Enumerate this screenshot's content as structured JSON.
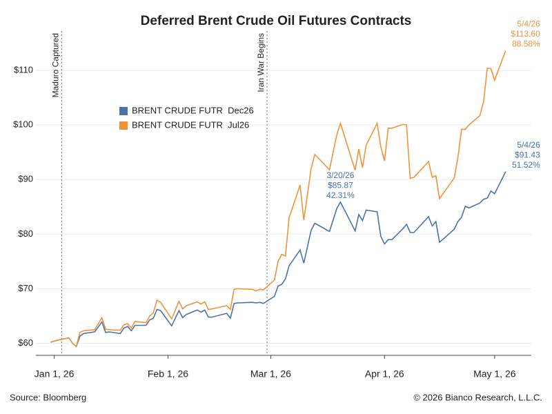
{
  "chart_data": {
    "type": "line",
    "title": "Deferred Brent Crude Oil Futures Contracts",
    "source": "Source: Bloomberg",
    "copyright": "© 2026 Bianco Research, L.L.C.",
    "x": [
      "2025-12-31",
      "2026-01-02",
      "2026-01-05",
      "2026-01-06",
      "2026-01-07",
      "2026-01-08",
      "2026-01-09",
      "2026-01-12",
      "2026-01-14",
      "2026-01-15",
      "2026-01-16",
      "2026-01-19",
      "2026-01-20",
      "2026-01-21",
      "2026-01-22",
      "2026-01-23",
      "2026-01-26",
      "2026-01-27",
      "2026-01-28",
      "2026-01-29",
      "2026-01-30",
      "2026-02-02",
      "2026-02-04",
      "2026-02-05",
      "2026-02-06",
      "2026-02-09",
      "2026-02-10",
      "2026-02-11",
      "2026-02-12",
      "2026-02-13",
      "2026-02-17",
      "2026-02-18",
      "2026-02-19",
      "2026-02-20",
      "2026-02-24",
      "2026-02-25",
      "2026-02-26",
      "2026-02-27",
      "2026-03-02",
      "2026-03-03",
      "2026-03-04",
      "2026-03-05",
      "2026-03-06",
      "2026-03-09",
      "2026-03-10",
      "2026-03-12",
      "2026-03-13",
      "2026-03-17",
      "2026-03-19",
      "2026-03-20",
      "2026-03-24",
      "2026-03-25",
      "2026-03-26",
      "2026-03-27",
      "2026-03-30",
      "2026-03-31",
      "2026-04-01",
      "2026-04-02",
      "2026-04-03",
      "2026-04-06",
      "2026-04-07",
      "2026-04-08",
      "2026-04-09",
      "2026-04-13",
      "2026-04-14",
      "2026-04-15",
      "2026-04-16",
      "2026-04-20",
      "2026-04-21",
      "2026-04-22",
      "2026-04-23",
      "2026-04-24",
      "2026-04-27",
      "2026-04-28",
      "2026-04-29",
      "2026-04-30",
      "2026-05-01",
      "2026-05-04"
    ],
    "series": [
      {
        "name": "BRENT CRUDE FUTR  Dec26",
        "color": "#4a72a6",
        "values": [
          60.2,
          60.6,
          61.0,
          60.0,
          59.4,
          61.3,
          61.8,
          62.1,
          63.9,
          62.0,
          62.1,
          61.8,
          62.8,
          63.1,
          62.3,
          63.3,
          63.3,
          64.3,
          64.6,
          66.2,
          66.0,
          63.2,
          66.0,
          64.7,
          65.3,
          66.1,
          65.7,
          66.1,
          64.8,
          64.8,
          65.5,
          64.6,
          67.3,
          67.4,
          67.5,
          67.4,
          67.5,
          67.3,
          68.6,
          70.5,
          70.8,
          71.8,
          74.2,
          77.1,
          74.7,
          80.7,
          82.0,
          80.5,
          84.7,
          85.87,
          80.6,
          83.6,
          82.5,
          84.4,
          84.1,
          79.6,
          78.2,
          79.0,
          79.0,
          81.0,
          81.8,
          80.3,
          80.3,
          83.2,
          81.5,
          82.3,
          78.5,
          80.9,
          82.3,
          83.1,
          85.1,
          84.8,
          85.7,
          86.4,
          86.6,
          87.9,
          87.4,
          91.43
        ],
        "value_labels": [
          null,
          null,
          null,
          null,
          null,
          null,
          null,
          null,
          null,
          null,
          null,
          null,
          null,
          null,
          null,
          null,
          null,
          null,
          null,
          null,
          null,
          null,
          null,
          null,
          null,
          null,
          null,
          null,
          null,
          null,
          null,
          null,
          null,
          null,
          null,
          null,
          null,
          null,
          null,
          null,
          null,
          null,
          null,
          null,
          null,
          null,
          null,
          null,
          null,
          [
            "3/20/26",
            "$85.87",
            "42.31%"
          ],
          null,
          null,
          null,
          null,
          null,
          null,
          null,
          null,
          null,
          null,
          null,
          null,
          null,
          null,
          null,
          null,
          null,
          null,
          null,
          null,
          null,
          null,
          null,
          null,
          null,
          null,
          null,
          [
            "5/4/26",
            "$91.43",
            "51.52%"
          ]
        ]
      },
      {
        "name": "BRENT CRUDE FUTR  Jul26",
        "color": "#f0923a",
        "values": [
          60.2,
          60.6,
          61.0,
          60.0,
          59.4,
          62.0,
          62.3,
          62.5,
          64.7,
          62.6,
          62.5,
          62.4,
          63.4,
          63.6,
          62.8,
          64.0,
          63.8,
          65.0,
          65.6,
          67.9,
          67.5,
          64.5,
          67.7,
          66.3,
          66.9,
          67.6,
          67.2,
          67.6,
          66.2,
          66.3,
          66.9,
          66.2,
          69.9,
          70.0,
          69.9,
          69.6,
          69.9,
          69.8,
          71.6,
          75.0,
          76.3,
          76.0,
          83.0,
          89.0,
          82.6,
          92.0,
          94.6,
          91.8,
          98.2,
          100.3,
          91.7,
          95.6,
          92.2,
          96.3,
          100.3,
          96.0,
          93.4,
          99.4,
          99.4,
          100.1,
          100.0,
          90.2,
          90.4,
          93.3,
          90.4,
          90.7,
          86.5,
          90.3,
          94.0,
          99.2,
          99.2,
          100.0,
          101.7,
          104.3,
          110.4,
          110.3,
          108.2,
          113.6
        ],
        "value_labels": [
          null,
          null,
          null,
          null,
          null,
          null,
          null,
          null,
          null,
          null,
          null,
          null,
          null,
          null,
          null,
          null,
          null,
          null,
          null,
          null,
          null,
          null,
          null,
          null,
          null,
          null,
          null,
          null,
          null,
          null,
          null,
          null,
          null,
          null,
          null,
          null,
          null,
          null,
          null,
          null,
          null,
          null,
          null,
          null,
          null,
          null,
          null,
          null,
          null,
          null,
          null,
          null,
          null,
          null,
          null,
          null,
          null,
          null,
          null,
          null,
          null,
          null,
          null,
          null,
          null,
          null,
          null,
          null,
          null,
          null,
          null,
          null,
          null,
          null,
          null,
          null,
          null,
          [
            "5/4/26",
            "$113.60",
            "88.58%"
          ]
        ]
      }
    ],
    "markers": [
      {
        "x": "2026-01-03",
        "label": "Maduro Captured"
      },
      {
        "x": "2026-02-28",
        "label": "Iran War Begins"
      }
    ],
    "xlim": [
      "2025-12-27",
      "2026-05-11"
    ],
    "xticks": [
      {
        "value": "2026-01-01",
        "label": "Jan 1, 26"
      },
      {
        "value": "2026-02-01",
        "label": "Feb 1, 26"
      },
      {
        "value": "2026-03-01",
        "label": "Mar 1, 26"
      },
      {
        "value": "2026-04-01",
        "label": "Apr 1, 26"
      },
      {
        "value": "2026-05-01",
        "label": "May 1, 26"
      }
    ],
    "ylim": [
      57.8,
      117.2
    ],
    "yticks": [
      {
        "value": 60,
        "label": "$60"
      },
      {
        "value": 70,
        "label": "$70"
      },
      {
        "value": 80,
        "label": "$80"
      },
      {
        "value": 90,
        "label": "$90"
      },
      {
        "value": 100,
        "label": "$100"
      },
      {
        "value": 110,
        "label": "$110"
      }
    ],
    "grid": true,
    "legend": "upper left"
  }
}
